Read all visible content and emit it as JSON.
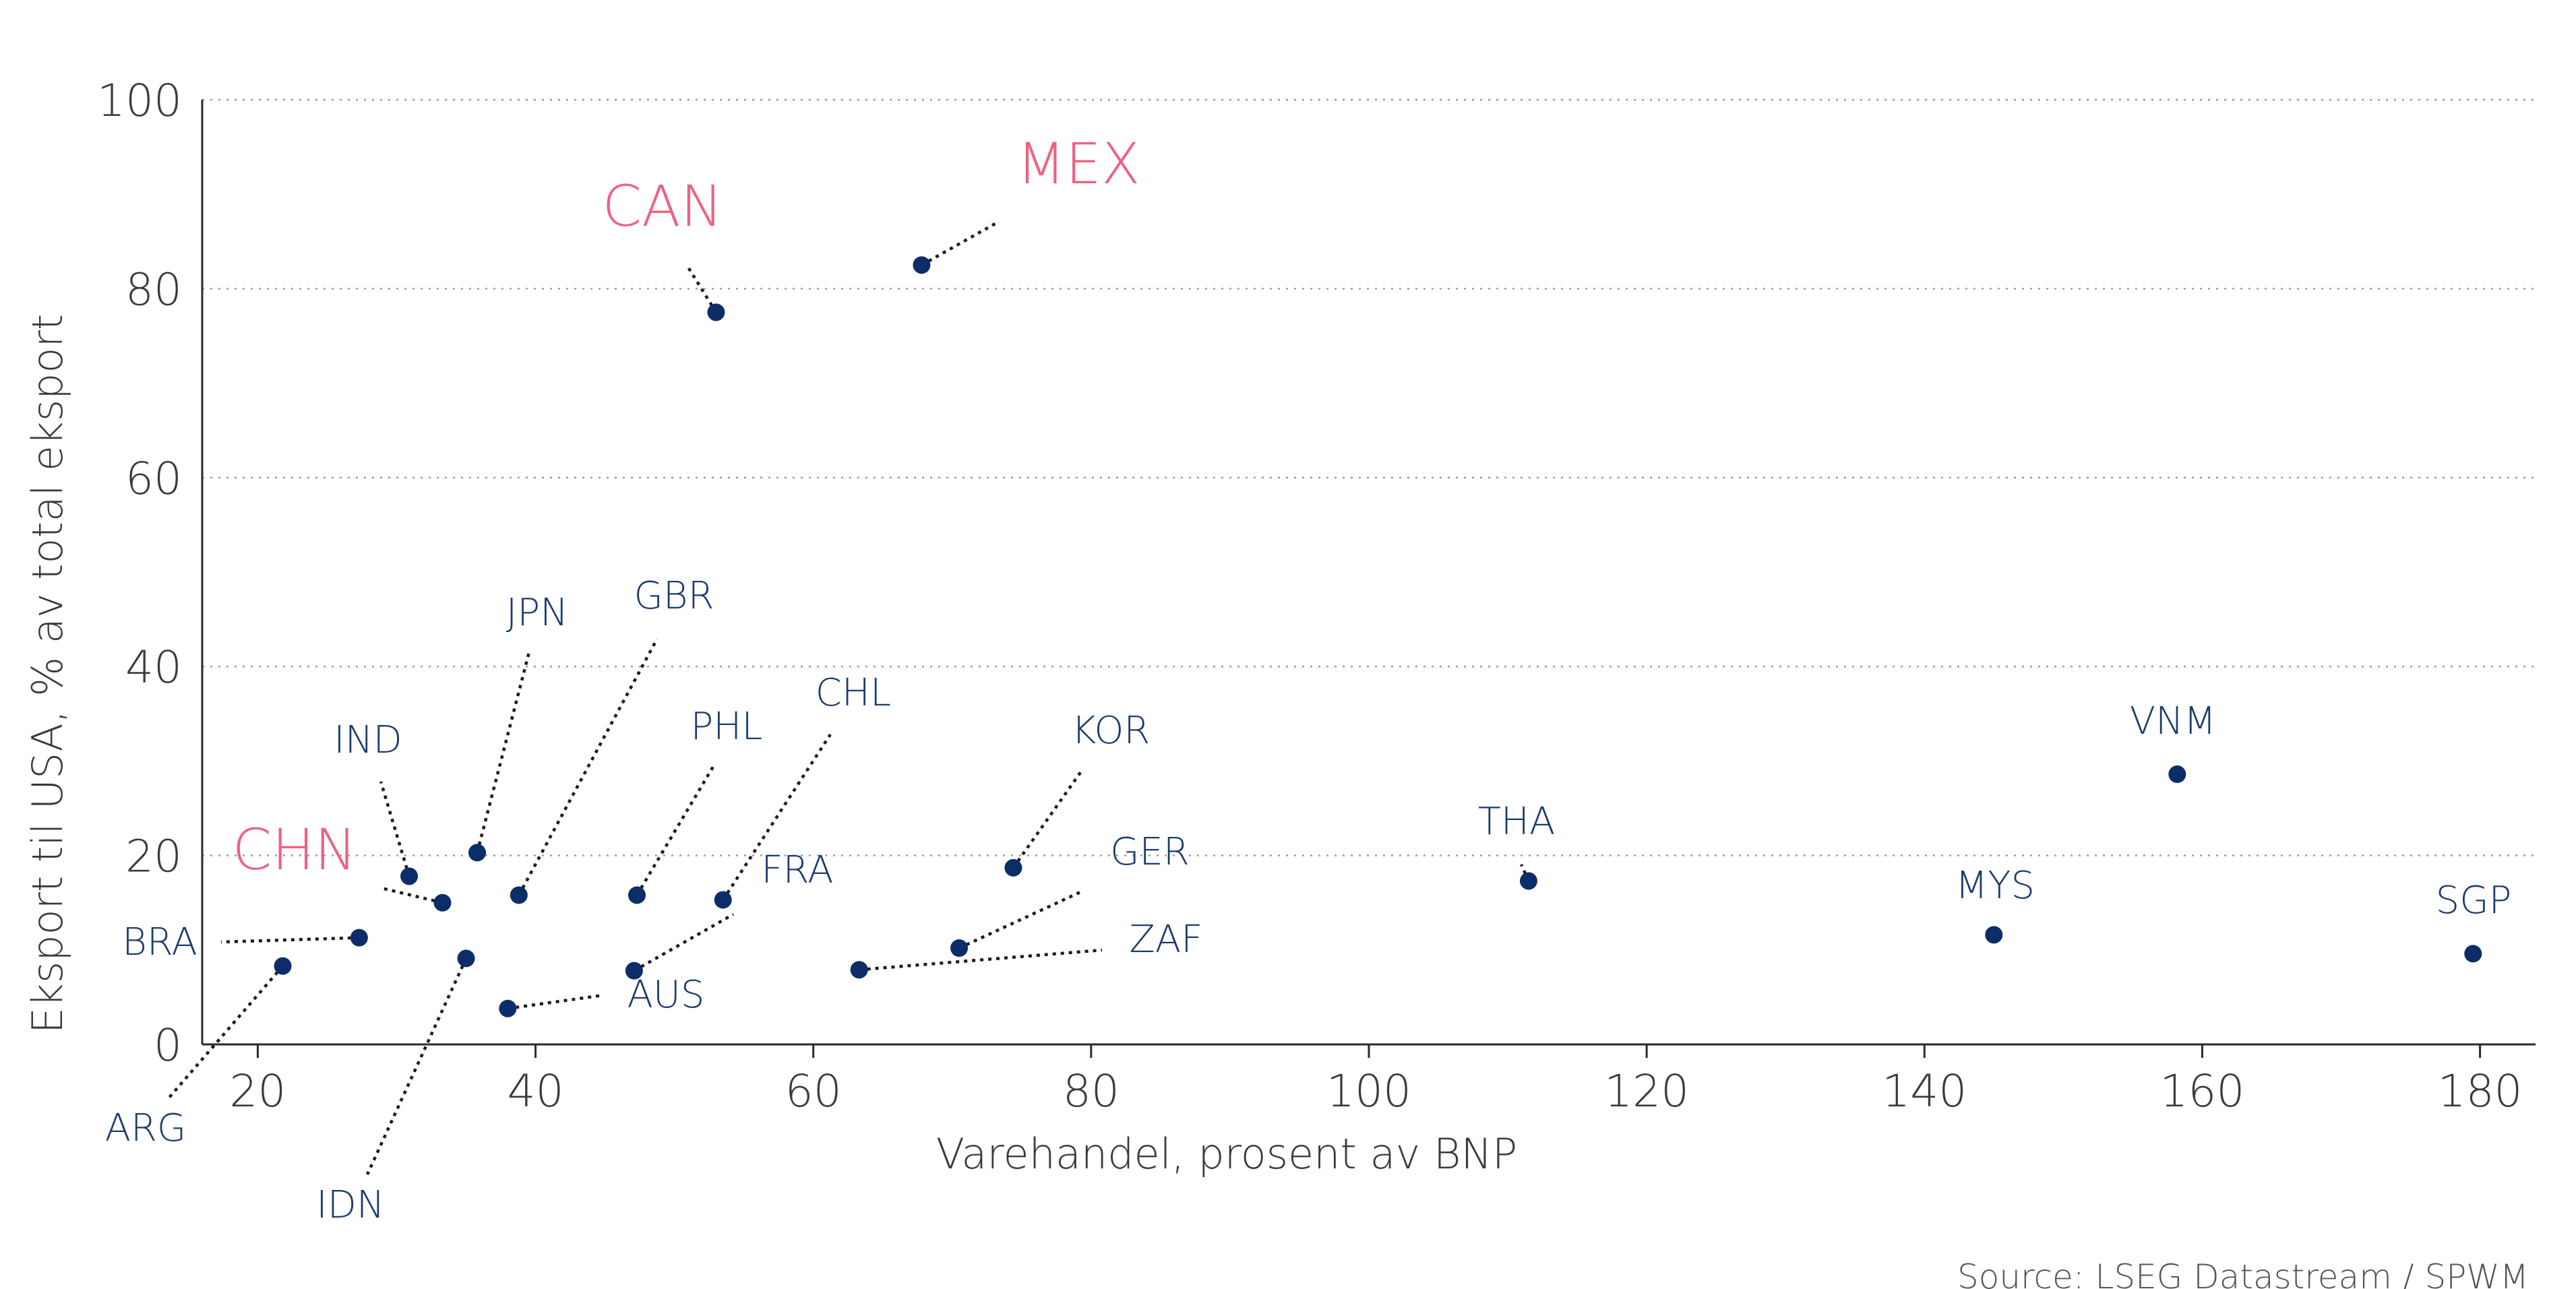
{
  "chart_data": {
    "type": "scatter",
    "title": "",
    "xlabel": "Varehandel, prosent av BNP",
    "ylabel": "Eksport til USA, % av total eksport",
    "xlim": [
      16,
      184
    ],
    "ylim": [
      0,
      100
    ],
    "x_ticks": [
      20,
      40,
      60,
      80,
      100,
      120,
      140,
      160,
      180
    ],
    "y_ticks": [
      0,
      20,
      40,
      60,
      80,
      100
    ],
    "grid": "horizontal-dotted",
    "highlight_color": "#ee6180",
    "point_color": "#0c2d67",
    "source": "Source: LSEG Datastream / SPWM",
    "points": [
      {
        "label": "CAN",
        "x": 53.0,
        "y": 77.5,
        "highlight": true
      },
      {
        "label": "MEX",
        "x": 67.8,
        "y": 82.5,
        "highlight": true
      },
      {
        "label": "CHN",
        "x": 33.3,
        "y": 15.0,
        "highlight": true
      },
      {
        "label": "JPN",
        "x": 35.8,
        "y": 20.3,
        "highlight": false
      },
      {
        "label": "GBR",
        "x": 38.8,
        "y": 15.8,
        "highlight": false
      },
      {
        "label": "IND",
        "x": 30.9,
        "y": 17.8,
        "highlight": false
      },
      {
        "label": "PHL",
        "x": 47.3,
        "y": 15.8,
        "highlight": false
      },
      {
        "label": "CHL",
        "x": 53.5,
        "y": 15.3,
        "highlight": false
      },
      {
        "label": "FRA",
        "x": 47.1,
        "y": 7.8,
        "highlight": false
      },
      {
        "label": "AUS",
        "x": 38.0,
        "y": 3.8,
        "highlight": false
      },
      {
        "label": "BRA",
        "x": 27.3,
        "y": 11.3,
        "highlight": false
      },
      {
        "label": "ARG",
        "x": 21.8,
        "y": 8.3,
        "highlight": false
      },
      {
        "label": "IDN",
        "x": 35.0,
        "y": 9.1,
        "highlight": false
      },
      {
        "label": "KOR",
        "x": 74.4,
        "y": 18.7,
        "highlight": false
      },
      {
        "label": "GER",
        "x": 70.5,
        "y": 10.2,
        "highlight": false
      },
      {
        "label": "ZAF",
        "x": 63.3,
        "y": 7.9,
        "highlight": false
      },
      {
        "label": "THA",
        "x": 111.5,
        "y": 17.3,
        "highlight": false
      },
      {
        "label": "MYS",
        "x": 145.0,
        "y": 11.6,
        "highlight": false
      },
      {
        "label": "VNM",
        "x": 158.2,
        "y": 28.6,
        "highlight": false
      },
      {
        "label": "SGP",
        "x": 179.5,
        "y": 9.6,
        "highlight": false
      }
    ]
  }
}
